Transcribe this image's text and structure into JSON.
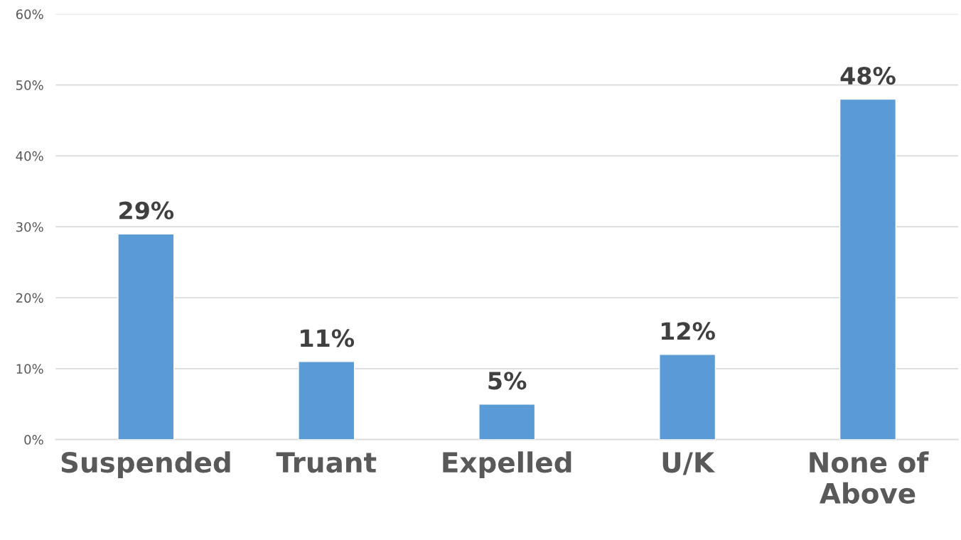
{
  "chart_data": {
    "type": "bar",
    "categories": [
      "Suspended",
      "Truant",
      "Expelled",
      "U/K",
      "None of Above"
    ],
    "values": [
      29,
      11,
      5,
      12,
      48
    ],
    "value_labels": [
      "29%",
      "11%",
      "5%",
      "12%",
      "48%"
    ],
    "color": "#5b9bd5",
    "ylim": [
      0,
      60
    ],
    "yticks": [
      {
        "value": 0,
        "label": "0%"
      },
      {
        "value": 10,
        "label": "10%"
      },
      {
        "value": 20,
        "label": "20%"
      },
      {
        "value": 30,
        "label": "30%"
      },
      {
        "value": 40,
        "label": "40%"
      },
      {
        "value": 50,
        "label": "50%"
      },
      {
        "value": 60,
        "label": "60%"
      }
    ],
    "grid": "y",
    "legend": false
  }
}
